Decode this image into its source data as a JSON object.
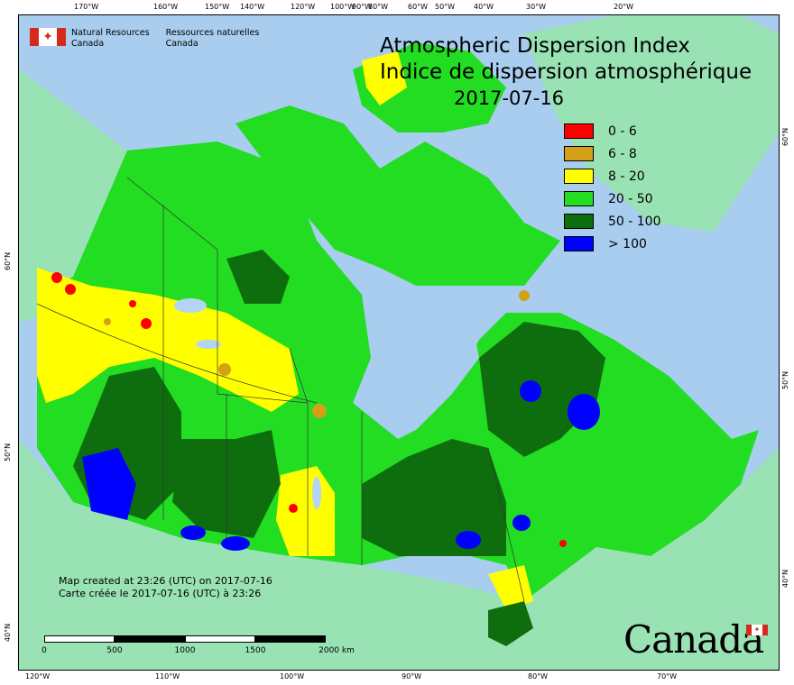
{
  "header": {
    "org_en_line1": "Natural Resources",
    "org_en_line2": "Canada",
    "org_fr_line1": "Ressources naturelles",
    "org_fr_line2": "Canada"
  },
  "title": {
    "en": "Atmospheric Dispersion Index",
    "fr": "Indice de dispersion atmosphérique",
    "date": "2017-07-16"
  },
  "legend": [
    {
      "label": "0 - 6",
      "color": "#ff0000"
    },
    {
      "label": "6 - 8",
      "color": "#d4a017"
    },
    {
      "label": "8 - 20",
      "color": "#ffff00"
    },
    {
      "label": "20 - 50",
      "color": "#22dd22"
    },
    {
      "label": "50 - 100",
      "color": "#0e6e0e"
    },
    {
      "label": "> 100",
      "color": "#0000ff"
    }
  ],
  "credit": {
    "en": "Map created at 23:26 (UTC) on 2017-07-16",
    "fr": "Carte créée le 2017-07-16 (UTC) à 23:26"
  },
  "scale": {
    "labels": [
      "0",
      "500",
      "1000",
      "1500",
      "2000 km"
    ]
  },
  "top_ticks": [
    "170°W",
    "160°W",
    "150°W",
    "140°W",
    "120°W",
    "100°W",
    "90°W",
    "80°W",
    "60°W",
    "50°W",
    "40°W",
    "30°W",
    "20°W"
  ],
  "bottom_ticks": [
    "120°W",
    "110°W",
    "100°W",
    "90°W",
    "80°W",
    "70°W"
  ],
  "left_ticks": [
    "60°N",
    "50°N",
    "40°N"
  ],
  "right_ticks": [
    "60°N",
    "50°N",
    "40°N"
  ],
  "wordmark": "Canada",
  "colors": {
    "ocean": "#a8cdef",
    "foreign_land": "#99e2b4",
    "lake": "#b4d4f5"
  }
}
